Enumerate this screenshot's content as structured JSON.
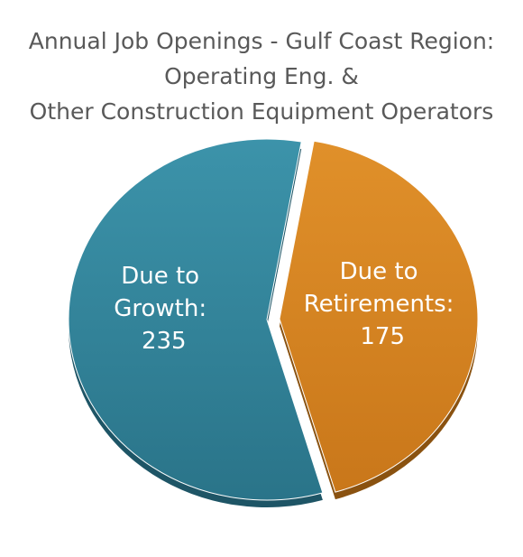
{
  "chart_data": {
    "type": "pie",
    "title_lines": [
      "Annual Job Openings - Gulf Coast Region:",
      "Operating Eng. &",
      "Other Construction Equipment Operators"
    ],
    "slices": [
      {
        "label_lines": [
          "Due to",
          "Growth:",
          "235"
        ],
        "value": 235,
        "color": "#31859C",
        "side_color": "#1E5566"
      },
      {
        "label_lines": [
          "Due to",
          "Retirements:",
          "175"
        ],
        "value": 175,
        "color": "#D6841E",
        "side_color": "#8A5210",
        "exploded": true
      }
    ],
    "legend": "none"
  }
}
